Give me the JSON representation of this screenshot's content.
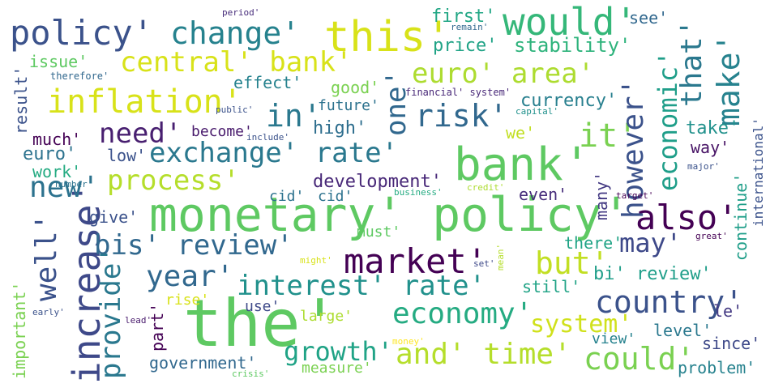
{
  "words": [
    {
      "text": "the'",
      "color": "#5ec962"
    },
    {
      "text": "monetary' policy'",
      "color": "#5ec962"
    },
    {
      "text": "bank'",
      "color": "#5ec962"
    },
    {
      "text": "this'",
      "color": "#d8e219"
    },
    {
      "text": "would'",
      "color": "#35b779"
    },
    {
      "text": "policy'",
      "color": "#3b528b"
    },
    {
      "text": "change'",
      "color": "#26828e"
    },
    {
      "text": "central' bank'",
      "color": "#d8e219"
    },
    {
      "text": "euro' area'",
      "color": "#addc30"
    },
    {
      "text": "inflation'",
      "color": "#d8e219"
    },
    {
      "text": "market'",
      "color": "#440154"
    },
    {
      "text": "also'",
      "color": "#440154"
    },
    {
      "text": "exchange' rate'",
      "color": "#2a788e"
    },
    {
      "text": "country'",
      "color": "#3b528b"
    },
    {
      "text": "increase'",
      "color": "#3e4989"
    },
    {
      "text": "economy'",
      "color": "#25ab82"
    },
    {
      "text": "interest' rate'",
      "color": "#21918c"
    },
    {
      "text": "bis' review'",
      "color": "#31688e"
    },
    {
      "text": "in'",
      "color": "#2a788e"
    },
    {
      "text": "risk'",
      "color": "#31688e"
    },
    {
      "text": "need'",
      "color": "#481f70"
    },
    {
      "text": "it'",
      "color": "#7ad151"
    },
    {
      "text": "however'",
      "color": "#3b528b"
    },
    {
      "text": "economic'",
      "color": "#1f9e89"
    },
    {
      "text": "make'",
      "color": "#26828e"
    },
    {
      "text": "that'",
      "color": "#2a788e"
    },
    {
      "text": "one'",
      "color": "#31688e"
    },
    {
      "text": "well'",
      "color": "#3b528b"
    },
    {
      "text": "new'",
      "color": "#2c728e"
    },
    {
      "text": "year'",
      "color": "#31688e"
    },
    {
      "text": "process'",
      "color": "#b5de2b"
    },
    {
      "text": "may'",
      "color": "#3e4989"
    },
    {
      "text": "but'",
      "color": "#c2df23"
    },
    {
      "text": "and' time'",
      "color": "#b5de2b"
    },
    {
      "text": "could'",
      "color": "#7ad151"
    },
    {
      "text": "growth'",
      "color": "#20a386"
    },
    {
      "text": "provide'",
      "color": "#2a788e"
    },
    {
      "text": "system'",
      "color": "#d0e11c"
    },
    {
      "text": "government'",
      "color": "#31688e"
    },
    {
      "text": "development'",
      "color": "#482878"
    },
    {
      "text": "first'",
      "color": "#22a785"
    },
    {
      "text": "price'",
      "color": "#20a386"
    },
    {
      "text": "stability'",
      "color": "#2eb37c"
    },
    {
      "text": "see'",
      "color": "#31688e"
    },
    {
      "text": "effect'",
      "color": "#26828e"
    },
    {
      "text": "issue'",
      "color": "#5ec962"
    },
    {
      "text": "good'",
      "color": "#7ad151"
    },
    {
      "text": "future'",
      "color": "#2c728e"
    },
    {
      "text": "high'",
      "color": "#2e6e8e"
    },
    {
      "text": "currency'",
      "color": "#277f8e"
    },
    {
      "text": "much'",
      "color": "#440154"
    },
    {
      "text": "become'",
      "color": "#481a6c"
    },
    {
      "text": "euro'",
      "color": "#2c728e"
    },
    {
      "text": "low'",
      "color": "#3b528b"
    },
    {
      "text": "work'",
      "color": "#25ab82"
    },
    {
      "text": "take'",
      "color": "#21918c"
    },
    {
      "text": "way'",
      "color": "#471365"
    },
    {
      "text": "we'",
      "color": "#c2df23"
    },
    {
      "text": "cid'",
      "color": "#2c728e"
    },
    {
      "text": "cid'",
      "color": "#2c728e"
    },
    {
      "text": "even'",
      "color": "#472d7b"
    },
    {
      "text": "give'",
      "color": "#3b528b"
    },
    {
      "text": "must'",
      "color": "#5ec962"
    },
    {
      "text": "there'",
      "color": "#20a386"
    },
    {
      "text": "still'",
      "color": "#20a386"
    },
    {
      "text": "bi' review'",
      "color": "#1f9e89"
    },
    {
      "text": "use'",
      "color": "#3e4989"
    },
    {
      "text": "rise'",
      "color": "#d8e219"
    },
    {
      "text": "large'",
      "color": "#addc30"
    },
    {
      "text": "view'",
      "color": "#26828e"
    },
    {
      "text": "level'",
      "color": "#2a788e"
    },
    {
      "text": "since'",
      "color": "#3e4989"
    },
    {
      "text": "measure'",
      "color": "#7ad151"
    },
    {
      "text": "problem'",
      "color": "#26828e"
    },
    {
      "text": "le'",
      "color": "#443a83"
    },
    {
      "text": "result'",
      "color": "#3b528b"
    },
    {
      "text": "important'",
      "color": "#7ad151"
    },
    {
      "text": "part'",
      "color": "#440154"
    },
    {
      "text": "many'",
      "color": "#443a83"
    },
    {
      "text": "continue'",
      "color": "#1f9e89"
    },
    {
      "text": "international'",
      "color": "#3b528b"
    },
    {
      "text": "period'",
      "color": "#472d7b"
    },
    {
      "text": "therefore'",
      "color": "#31688e"
    },
    {
      "text": "financial' system'",
      "color": "#482878"
    },
    {
      "text": "public'",
      "color": "#3b528b"
    },
    {
      "text": "include'",
      "color": "#3b528b"
    },
    {
      "text": "capital'",
      "color": "#21918c"
    },
    {
      "text": "number'",
      "color": "#2c728e"
    },
    {
      "text": "business'",
      "color": "#25ab82"
    },
    {
      "text": "credit'",
      "color": "#addc30"
    },
    {
      "text": "target'",
      "color": "#440154"
    },
    {
      "text": "major'",
      "color": "#3b528b"
    },
    {
      "text": "great'",
      "color": "#440154"
    },
    {
      "text": "might'",
      "color": "#d8e219"
    },
    {
      "text": "set'",
      "color": "#3e4989"
    },
    {
      "text": "mean'",
      "color": "#b5de2b"
    },
    {
      "text": "early'",
      "color": "#3b528b"
    },
    {
      "text": "lead'",
      "color": "#481a6c"
    },
    {
      "text": "money'",
      "color": "#fde725"
    },
    {
      "text": "crisis'",
      "color": "#5ec962"
    },
    {
      "text": "remain'",
      "color": "#31688e"
    }
  ]
}
